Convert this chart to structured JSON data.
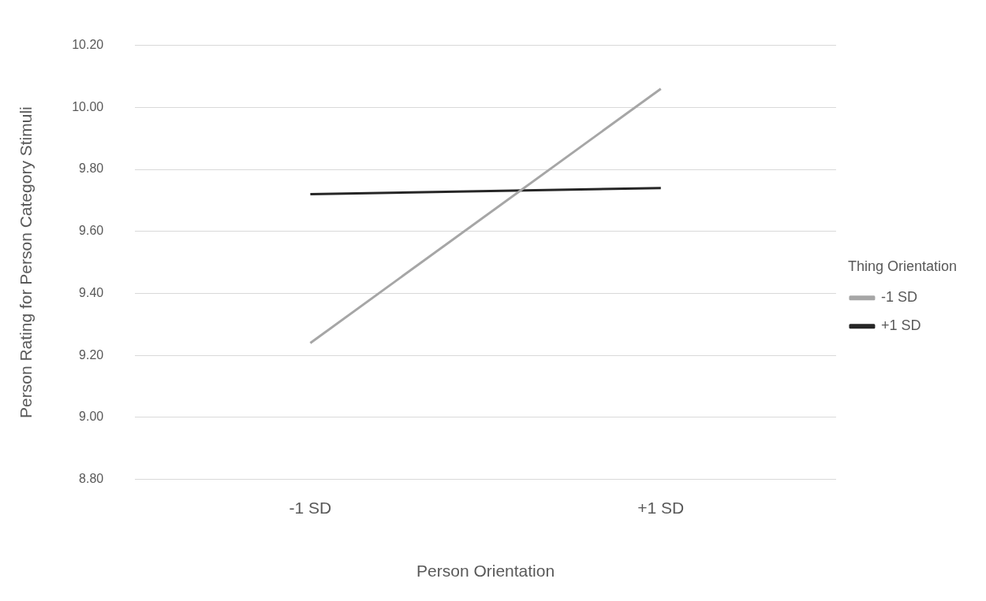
{
  "chart_data": {
    "type": "line",
    "xlabel": "Person Orientation",
    "ylabel": "Person Rating for Person Category Stimuli",
    "legend_title": "Thing Orientation",
    "categories": [
      "-1 SD",
      "+1 SD"
    ],
    "series": [
      {
        "name": "-1 SD",
        "color": "#a6a6a6",
        "values": [
          9.24,
          10.06
        ]
      },
      {
        "name": "+1 SD",
        "color": "#262626",
        "values": [
          9.72,
          9.74
        ]
      }
    ],
    "ylim": [
      8.8,
      10.2
    ],
    "yticks": [
      {
        "value": 8.8,
        "label": "8.80"
      },
      {
        "value": 9.0,
        "label": "9.00"
      },
      {
        "value": 9.2,
        "label": "9.20"
      },
      {
        "value": 9.4,
        "label": "9.40"
      },
      {
        "value": 9.6,
        "label": "9.60"
      },
      {
        "value": 9.8,
        "label": "9.80"
      },
      {
        "value": 10.0,
        "label": "10.00"
      },
      {
        "value": 10.2,
        "label": "10.20"
      }
    ],
    "grid": "y",
    "legend": "right",
    "marker": "none",
    "line_style": "solid"
  }
}
